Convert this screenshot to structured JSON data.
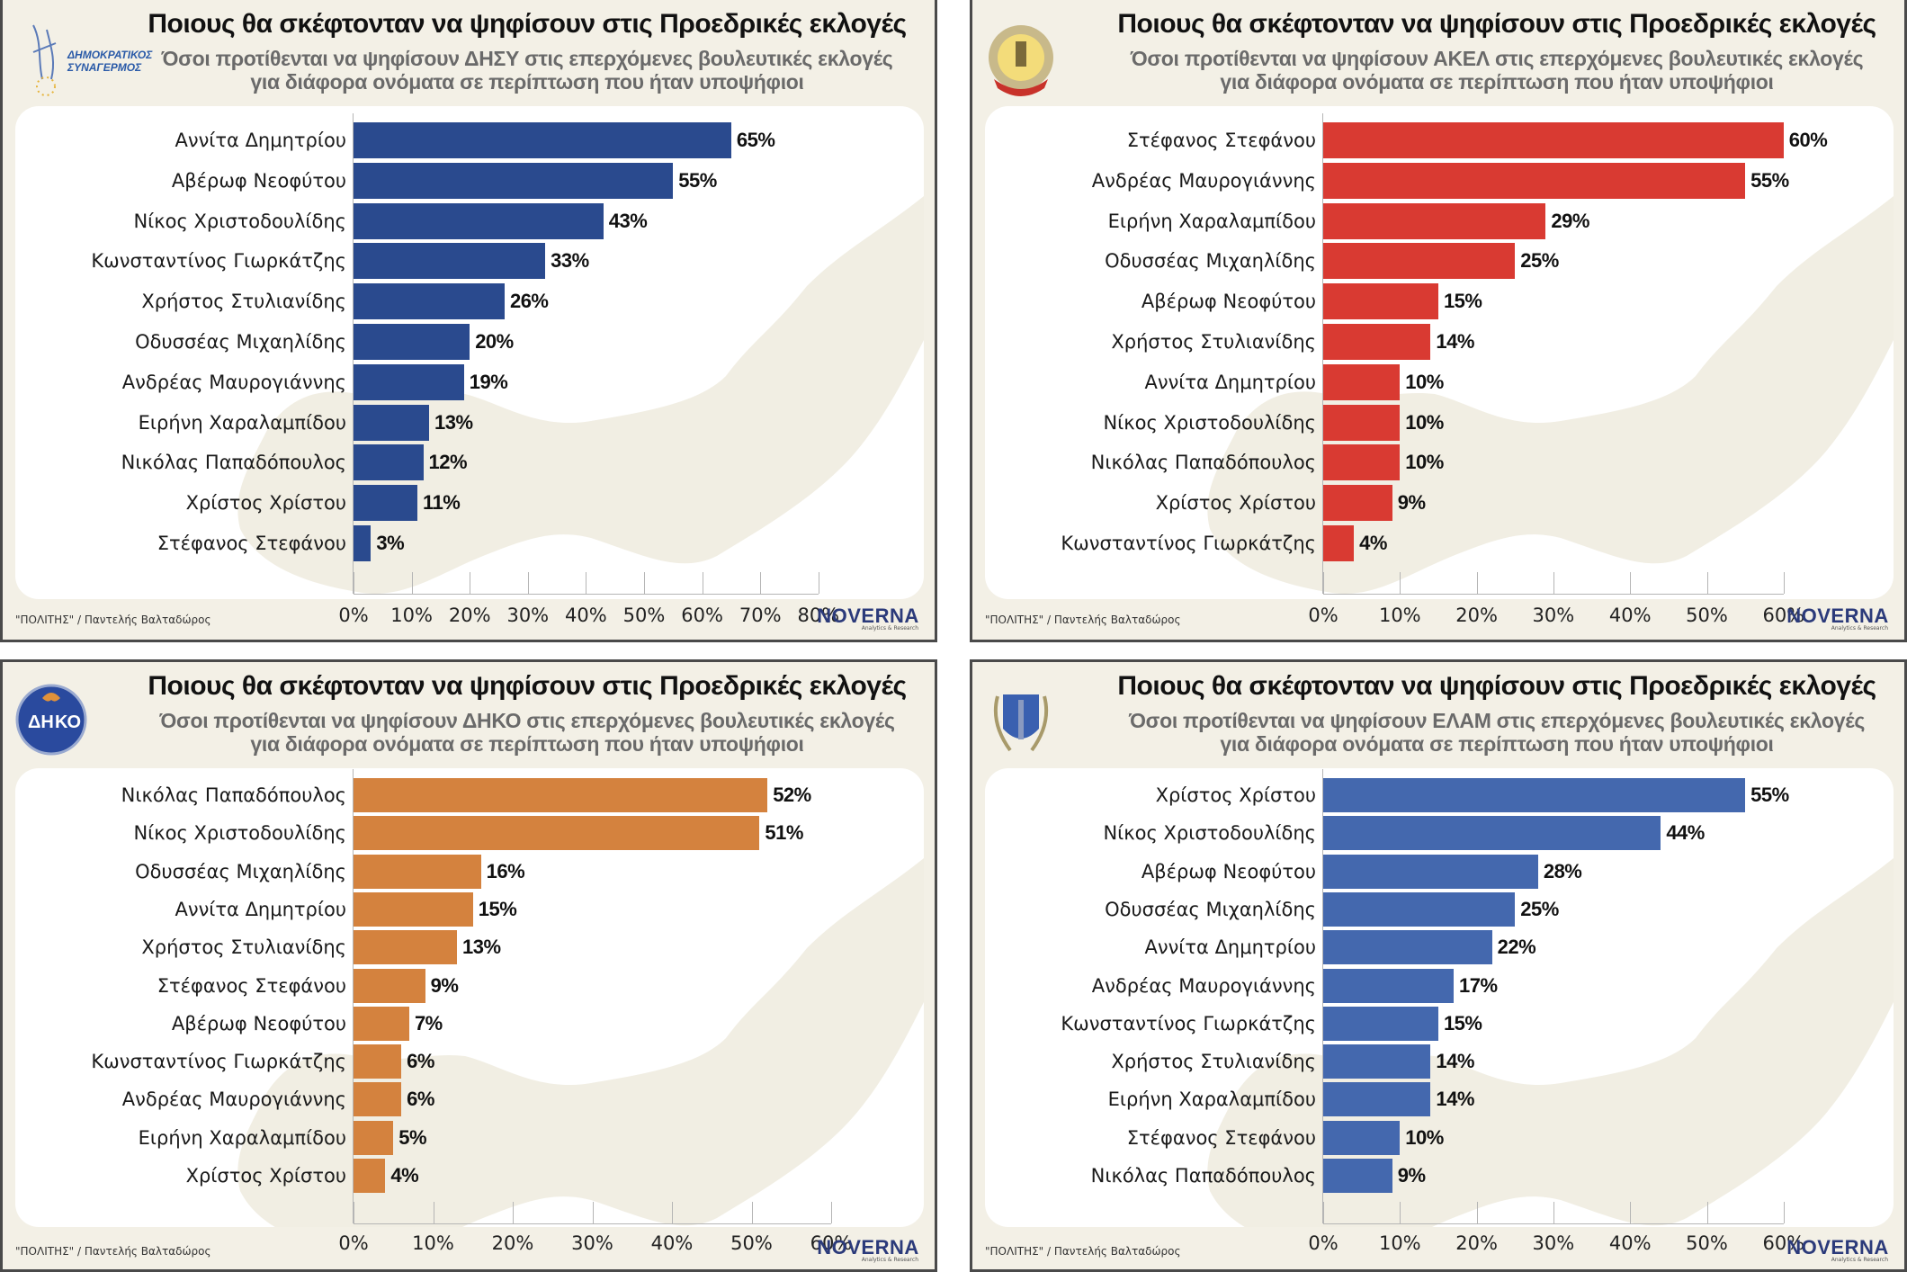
{
  "colors": {
    "panel_bg": "#f3f0e6",
    "card_bg": "#ffffff",
    "map": "#f1eee3",
    "disy": "#2a4a8e",
    "akel": "#d93a32",
    "diko": "#d4823e",
    "elam": "#4468ae"
  },
  "panels": [
    {
      "party": "ΔΗΣΥ",
      "logo_icon": "disy-logo-icon",
      "logo_text": [
        "ΔΗΜΟΚΡΑΤΙΚΟΣ",
        "ΣΥΝΑΓΕΡΜΟΣ"
      ],
      "title": "Ποιους θα σκέφτονταν να ψηφίσουν στις Προεδρικές εκλογές",
      "subtitle_line1": "Όσοι προτίθενται να ψηφίσουν ΔΗΣΥ στις επερχόμενες βουλευτικές εκλογές",
      "subtitle_line2": "για διάφορα ονόματα σε περίπτωση που ήταν υποψήφιοι",
      "source": "\"ΠΟΛΙΤΗΣ\" / Παντελής Βαλταδώρος",
      "brand": "NOVERNA",
      "brand_tag": "Analytics & Research"
    },
    {
      "party": "ΑΚΕΛ",
      "logo_icon": "akel-logo-icon",
      "logo_text": [],
      "title": "Ποιους θα σκέφτονταν να ψηφίσουν στις Προεδρικές εκλογές",
      "subtitle_line1": "Όσοι προτίθενται να ψηφίσουν ΑΚΕΛ στις επερχόμενες βουλευτικές εκλογές",
      "subtitle_line2": "για διάφορα ονόματα σε περίπτωση που ήταν υποψήφιοι",
      "source": "\"ΠΟΛΙΤΗΣ\" / Παντελής Βαλταδώρος",
      "brand": "NOVERNA",
      "brand_tag": "Analytics & Research"
    },
    {
      "party": "ΔΗΚΟ",
      "logo_icon": "diko-logo-icon",
      "logo_text": [
        "ΔΗ",
        "ΚΟ"
      ],
      "title": "Ποιους θα σκέφτονταν να ψηφίσουν στις Προεδρικές εκλογές",
      "subtitle_line1": "Όσοι προτίθενται να ψηφίσουν ΔΗΚΟ στις επερχόμενες βουλευτικές εκλογές",
      "subtitle_line2": "για διάφορα ονόματα σε περίπτωση που ήταν υποψήφιοι",
      "source": "\"ΠΟΛΙΤΗΣ\" / Παντελής Βαλταδώρος",
      "brand": "NOVERNA",
      "brand_tag": "Analytics & Research"
    },
    {
      "party": "ΕΛΑΜ",
      "logo_icon": "elam-logo-icon",
      "logo_text": [],
      "title": "Ποιους θα σκέφτονταν να ψηφίσουν στις Προεδρικές εκλογές",
      "subtitle_line1": "Όσοι προτίθενται να ψηφίσουν ΕΛΑΜ στις επερχόμενες βουλευτικές εκλογές",
      "subtitle_line2": "για διάφορα ονόματα σε περίπτωση που ήταν υποψήφιοι",
      "source": "\"ΠΟΛΙΤΗΣ\" / Παντελής Βαλταδώρος",
      "brand": "NOVERNA",
      "brand_tag": "Analytics & Research"
    }
  ],
  "chart_data": [
    {
      "type": "bar",
      "orientation": "horizontal",
      "title": "Ποιους θα σκέφτονταν να ψηφίσουν στις Προεδρικές εκλογές",
      "subtitle": "Όσοι προτίθενται να ψηφίσουν ΔΗΣΥ στις επερχόμενες βουλευτικές εκλογές για διάφορα ονόματα σε περίπτωση που ήταν υποψήφιοι",
      "categories": [
        "Αννίτα Δημητρίου",
        "Αβέρωφ Νεοφύτου",
        "Νίκος Χριστοδουλίδης",
        "Κωνσταντίνος Γιωρκάτζης",
        "Χρήστος Στυλιανίδης",
        "Οδυσσέας Μιχαηλίδης",
        "Ανδρέας Μαυρογιάννης",
        "Ειρήνη Χαραλαμπίδου",
        "Νικόλας Παπαδόπουλος",
        "Χρίστος Χρίστου",
        "Στέφανος Στεφάνου"
      ],
      "values": [
        65,
        55,
        43,
        33,
        26,
        20,
        19,
        13,
        12,
        11,
        3
      ],
      "value_labels": [
        "65%",
        "55%",
        "43%",
        "33%",
        "26%",
        "20%",
        "19%",
        "13%",
        "12%",
        "11%",
        "3%"
      ],
      "xlim": [
        0,
        80
      ],
      "xticks": [
        "0%",
        "10%",
        "20%",
        "30%",
        "40%",
        "50%",
        "60%",
        "70%",
        "80%"
      ],
      "xlabel": "",
      "ylabel": "",
      "grid": false,
      "color": "#2a4a8e"
    },
    {
      "type": "bar",
      "orientation": "horizontal",
      "title": "Ποιους θα σκέφτονταν να ψηφίσουν στις Προεδρικές εκλογές",
      "subtitle": "Όσοι προτίθενται να ψηφίσουν ΑΚΕΛ στις επερχόμενες βουλευτικές εκλογές για διάφορα ονόματα σε περίπτωση που ήταν υποψήφιοι",
      "categories": [
        "Στέφανος Στεφάνου",
        "Ανδρέας Μαυρογιάννης",
        "Ειρήνη Χαραλαμπίδου",
        "Οδυσσέας Μιχαηλίδης",
        "Αβέρωφ Νεοφύτου",
        "Χρήστος Στυλιανίδης",
        "Αννίτα Δημητρίου",
        "Νίκος Χριστοδουλίδης",
        "Νικόλας Παπαδόπουλος",
        "Χρίστος Χρίστου",
        "Κωνσταντίνος Γιωρκάτζης"
      ],
      "values": [
        60,
        55,
        29,
        25,
        15,
        14,
        10,
        10,
        10,
        9,
        4
      ],
      "value_labels": [
        "60%",
        "55%",
        "29%",
        "25%",
        "15%",
        "14%",
        "10%",
        "10%",
        "10%",
        "9%",
        "4%"
      ],
      "xlim": [
        0,
        60
      ],
      "xticks": [
        "0%",
        "10%",
        "20%",
        "30%",
        "40%",
        "50%",
        "60%"
      ],
      "xlabel": "",
      "ylabel": "",
      "grid": false,
      "color": "#d93a32"
    },
    {
      "type": "bar",
      "orientation": "horizontal",
      "title": "Ποιους θα σκέφτονταν να ψηφίσουν στις Προεδρικές εκλογές",
      "subtitle": "Όσοι προτίθενται να ψηφίσουν ΔΗΚΟ στις επερχόμενες βουλευτικές εκλογές για διάφορα ονόματα σε περίπτωση που ήταν υποψήφιοι",
      "categories": [
        "Νικόλας Παπαδόπουλος",
        "Νίκος Χριστοδουλίδης",
        "Οδυσσέας Μιχαηλίδης",
        "Αννίτα Δημητρίου",
        "Χρήστος Στυλιανίδης",
        "Στέφανος Στεφάνου",
        "Αβέρωφ Νεοφύτου",
        "Κωνσταντίνος Γιωρκάτζης",
        "Ανδρέας Μαυρογιάννης",
        "Ειρήνη Χαραλαμπίδου",
        "Χρίστος Χρίστου"
      ],
      "values": [
        52,
        51,
        16,
        15,
        13,
        9,
        7,
        6,
        6,
        5,
        4
      ],
      "value_labels": [
        "52%",
        "51%",
        "16%",
        "15%",
        "13%",
        "9%",
        "7%",
        "6%",
        "6%",
        "5%",
        "4%"
      ],
      "xlim": [
        0,
        60
      ],
      "xticks": [
        "0%",
        "10%",
        "20%",
        "30%",
        "40%",
        "50%",
        "60%"
      ],
      "xlabel": "",
      "ylabel": "",
      "grid": false,
      "color": "#d4823e"
    },
    {
      "type": "bar",
      "orientation": "horizontal",
      "title": "Ποιους θα σκέφτονταν να ψηφίσουν στις Προεδρικές εκλογές",
      "subtitle": "Όσοι προτίθενται να ψηφίσουν ΕΛΑΜ στις επερχόμενες βουλευτικές εκλογές για διάφορα ονόματα σε περίπτωση που ήταν υποψήφιοι",
      "categories": [
        "Χρίστος Χρίστου",
        "Νίκος Χριστοδουλίδης",
        "Αβέρωφ Νεοφύτου",
        "Οδυσσέας Μιχαηλίδης",
        "Αννίτα Δημητρίου",
        "Ανδρέας Μαυρογιάννης",
        "Κωνσταντίνος Γιωρκάτζης",
        "Χρήστος Στυλιανίδης",
        "Ειρήνη Χαραλαμπίδου",
        "Στέφανος Στεφάνου",
        "Νικόλας Παπαδόπουλος"
      ],
      "values": [
        55,
        44,
        28,
        25,
        22,
        17,
        15,
        14,
        14,
        10,
        9
      ],
      "value_labels": [
        "55%",
        "44%",
        "28%",
        "25%",
        "22%",
        "17%",
        "15%",
        "14%",
        "14%",
        "10%",
        "9%"
      ],
      "xlim": [
        0,
        60
      ],
      "xticks": [
        "0%",
        "10%",
        "20%",
        "30%",
        "40%",
        "50%",
        "60%"
      ],
      "xlabel": "",
      "ylabel": "",
      "grid": false,
      "color": "#4468ae"
    }
  ]
}
